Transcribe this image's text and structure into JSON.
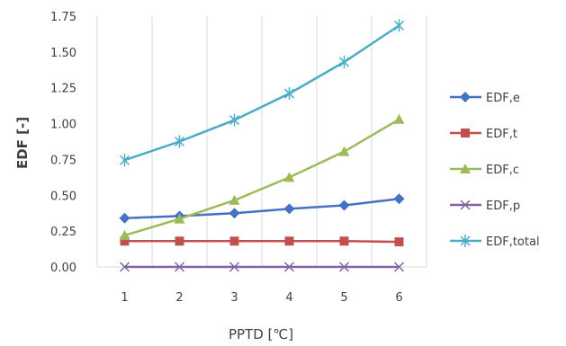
{
  "chart_data": {
    "type": "line",
    "title": "",
    "xlabel": "PPTD [℃]",
    "ylabel": "EDF [-]",
    "x": [
      1,
      2,
      3,
      4,
      5,
      6
    ],
    "x_tick_labels": [
      "1",
      "2",
      "3",
      "4",
      "5",
      "6"
    ],
    "y_tick_labels": [
      "0.00",
      "0.25",
      "0.50",
      "0.75",
      "1.00",
      "1.25",
      "1.50",
      "1.75"
    ],
    "ylim": [
      0,
      1.75
    ],
    "grid": "vertical",
    "legend_position": "right",
    "series": [
      {
        "name": "EDF,e",
        "values": [
          0.34,
          0.355,
          0.375,
          0.405,
          0.43,
          0.475
        ],
        "color": "#4472C4",
        "marker": "diamond"
      },
      {
        "name": "EDF,t",
        "values": [
          0.18,
          0.18,
          0.18,
          0.18,
          0.18,
          0.175
        ],
        "color": "#C0504D",
        "marker": "square"
      },
      {
        "name": "EDF,c",
        "values": [
          0.22,
          0.335,
          0.465,
          0.625,
          0.805,
          1.03
        ],
        "color": "#9BBB59",
        "marker": "triangle"
      },
      {
        "name": "EDF,p",
        "values": [
          0,
          0,
          0,
          0,
          0,
          0
        ],
        "color": "#8064A2",
        "marker": "x"
      },
      {
        "name": "EDF,total",
        "values": [
          0.745,
          0.875,
          1.025,
          1.21,
          1.43,
          1.685
        ],
        "color": "#4BACC6",
        "marker": "star"
      }
    ]
  }
}
